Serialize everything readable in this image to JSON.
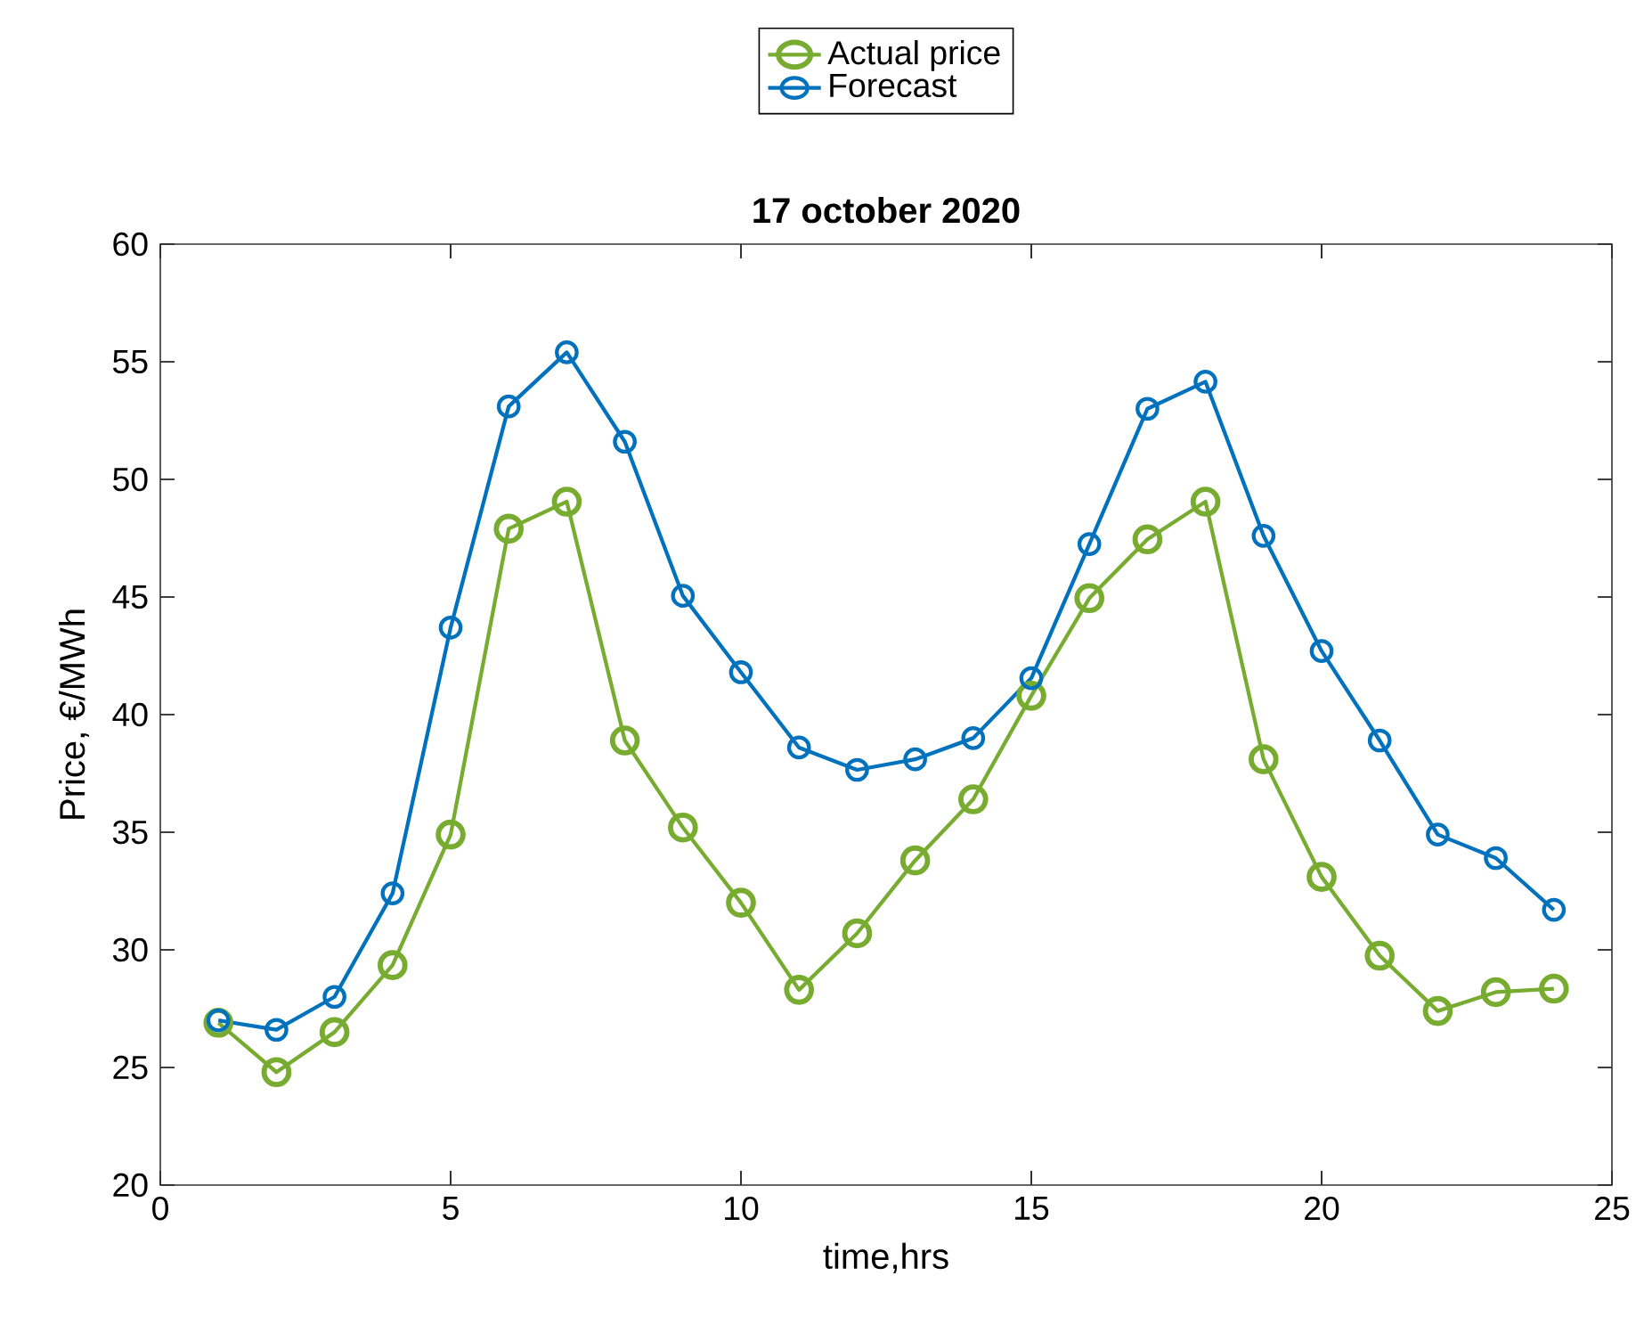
{
  "chart_data": {
    "type": "line",
    "title": "17 october 2020",
    "xlabel": "time,hrs",
    "ylabel": "Price, €/MWh",
    "x": [
      1,
      2,
      3,
      4,
      5,
      6,
      7,
      8,
      9,
      10,
      11,
      12,
      13,
      14,
      15,
      16,
      17,
      18,
      19,
      20,
      21,
      22,
      23,
      24
    ],
    "series": [
      {
        "name": "Actual price",
        "color": "#77ac30",
        "values": [
          26.9,
          24.8,
          26.5,
          29.35,
          34.9,
          47.9,
          49.05,
          38.9,
          35.2,
          32.0,
          28.3,
          30.7,
          33.8,
          36.4,
          40.8,
          44.95,
          47.45,
          49.05,
          38.1,
          33.1,
          29.75,
          27.4,
          28.2,
          28.35
        ]
      },
      {
        "name": "Forecast",
        "color": "#0072bd",
        "values": [
          27.0,
          26.6,
          28.0,
          32.4,
          43.7,
          53.1,
          55.4,
          51.6,
          45.05,
          41.8,
          38.6,
          37.65,
          38.1,
          39.0,
          41.55,
          47.25,
          53.0,
          54.15,
          47.6,
          42.7,
          38.9,
          34.9,
          33.9,
          31.7
        ]
      }
    ],
    "xlim": [
      0,
      25
    ],
    "ylim": [
      20,
      60
    ],
    "xticks": [
      0,
      5,
      10,
      15,
      20,
      25
    ],
    "yticks": [
      20,
      25,
      30,
      35,
      40,
      45,
      50,
      55,
      60
    ],
    "legend": "top",
    "marker": "circle",
    "line_style": "solid",
    "grid": false
  }
}
